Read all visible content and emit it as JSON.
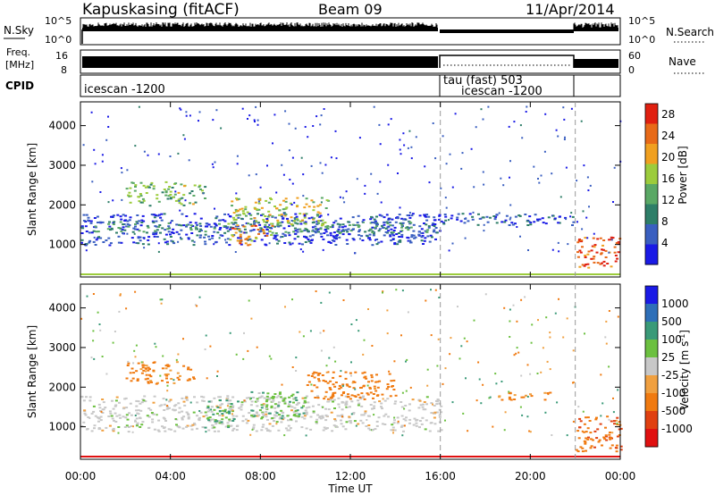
{
  "header": {
    "station": "Kapuskasing (fitACF)",
    "beam": "Beam 09",
    "date": "11/Apr/2014"
  },
  "top_panels": {
    "nsky_label": "N.Sky",
    "nsky_ticks": [
      "10^5",
      "10^0"
    ],
    "nsearch_label": "N.Search",
    "nsearch_ticks": [
      "10^5",
      "10^0"
    ],
    "freq_label_line1": "Freq.",
    "freq_label_line2": "[MHz]",
    "freq_ticks": [
      "16",
      "8"
    ],
    "nave_label": "Nave",
    "nave_ticks": [
      "60",
      "0"
    ],
    "cpid_label": "CPID",
    "cpid_segments": [
      {
        "label": "icescan -1200",
        "start_hour": 0,
        "end_hour": 16
      },
      {
        "label": "tau (fast) 503",
        "start_hour": 16,
        "end_hour": 22
      },
      {
        "label": "icescan -1200",
        "start_hour": 16,
        "end_hour": 22
      }
    ]
  },
  "colors": {
    "power": [
      "#1a1ae6",
      "#3a5fc0",
      "#2e7e68",
      "#5aa865",
      "#9ccc3c",
      "#f0a020",
      "#e86a18",
      "#e02010"
    ],
    "velocity": [
      "#1a1ae6",
      "#2e6fb8",
      "#3a9a78",
      "#6cc040",
      "#c8c8c8",
      "#f0a040",
      "#f07a10",
      "#e04010",
      "#e01010"
    ]
  },
  "chart_data": [
    {
      "type": "heatmap",
      "title": "",
      "xlabel": "Time UT",
      "ylabel": "Slant Range [km]",
      "x_ticks": [
        "00:00",
        "04:00",
        "08:00",
        "12:00",
        "16:00",
        "20:00",
        "00:00"
      ],
      "xlim_hours": [
        0,
        24
      ],
      "y_ticks": [
        1000,
        2000,
        3000,
        4000
      ],
      "ylim": [
        180,
        4600
      ],
      "colorbar_label": "Power [dB]",
      "colorbar_ticks": [
        4,
        8,
        12,
        16,
        20,
        24,
        28
      ],
      "colorbar_range": [
        0,
        30
      ],
      "mode_change_hours": [
        16,
        22
      ],
      "bands": [
        {
          "t0": 0.0,
          "t1": 16.0,
          "r0": 1000,
          "r1": 1800,
          "level": 4
        },
        {
          "t0": 0.0,
          "t1": 16.0,
          "r0": 1300,
          "r1": 1600,
          "level": 10
        },
        {
          "t0": 2.0,
          "t1": 5.5,
          "r0": 2000,
          "r1": 2600,
          "level": 14
        },
        {
          "t0": 6.5,
          "t1": 11.0,
          "r0": 1500,
          "r1": 2200,
          "level": 17
        },
        {
          "t0": 6.5,
          "t1": 8.5,
          "r0": 1000,
          "r1": 1500,
          "level": 22
        },
        {
          "t0": 16.0,
          "t1": 22.0,
          "r0": 1500,
          "r1": 1800,
          "level": 5
        },
        {
          "t0": 22.0,
          "t1": 24.0,
          "r0": 400,
          "r1": 1200,
          "level": 26
        }
      ]
    },
    {
      "type": "heatmap",
      "title": "",
      "xlabel": "Time UT",
      "ylabel": "Slant Range [km]",
      "x_ticks": [
        "00:00",
        "04:00",
        "08:00",
        "12:00",
        "16:00",
        "20:00",
        "00:00"
      ],
      "xlim_hours": [
        0,
        24
      ],
      "y_ticks": [
        1000,
        2000,
        3000,
        4000
      ],
      "ylim": [
        180,
        4600
      ],
      "colorbar_label": "Velocity [m s^-1]",
      "colorbar_ticks": [
        "1000",
        "500",
        "100",
        "25",
        "-25",
        "-100",
        "-500",
        "-1000"
      ],
      "mode_change_hours": [
        16,
        22
      ],
      "bands": [
        {
          "t0": 0.0,
          "t1": 16.0,
          "r0": 900,
          "r1": 1800,
          "value": 0
        },
        {
          "t0": 2.0,
          "t1": 5.0,
          "r0": 2100,
          "r1": 2700,
          "value": -150
        },
        {
          "t0": 5.5,
          "t1": 7.0,
          "r0": 1000,
          "r1": 1700,
          "value": 120
        },
        {
          "t0": 7.5,
          "t1": 10.0,
          "r0": 1200,
          "r1": 1900,
          "value": 80
        },
        {
          "t0": 10.0,
          "t1": 14.0,
          "r0": 1700,
          "r1": 2400,
          "value": -200
        },
        {
          "t0": 18.5,
          "t1": 21.0,
          "r0": 1700,
          "r1": 1900,
          "value": -120
        },
        {
          "t0": 22.0,
          "t1": 24.0,
          "r0": 400,
          "r1": 1300,
          "value": -400
        }
      ]
    }
  ]
}
